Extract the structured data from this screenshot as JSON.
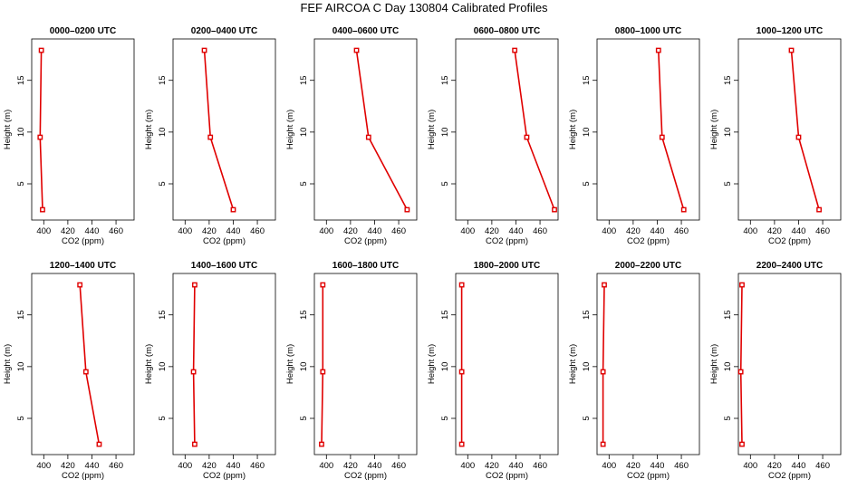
{
  "title": "FEF AIRCOA C  Day 130804  Calibrated Profiles",
  "series_color": "#e00000",
  "chart_data": [
    {
      "type": "line",
      "title": "0000–0200 UTC",
      "xlabel": "CO2 (ppm)",
      "ylabel": "Height (m)",
      "xlim": [
        390,
        475
      ],
      "ylim": [
        1.5,
        19
      ],
      "xticks": [
        400,
        420,
        440,
        460
      ],
      "yticks": [
        5,
        10,
        15
      ],
      "x": [
        398,
        397,
        399
      ],
      "y": [
        17.9,
        9.5,
        2.5
      ]
    },
    {
      "type": "line",
      "title": "0200–0400 UTC",
      "xlabel": "CO2 (ppm)",
      "ylabel": "Height (m)",
      "xlim": [
        390,
        475
      ],
      "ylim": [
        1.5,
        19
      ],
      "xticks": [
        400,
        420,
        440,
        460
      ],
      "yticks": [
        5,
        10,
        15
      ],
      "x": [
        416,
        421,
        440
      ],
      "y": [
        17.9,
        9.5,
        2.5
      ]
    },
    {
      "type": "line",
      "title": "0400–0600 UTC",
      "xlabel": "CO2 (ppm)",
      "ylabel": "Height (m)",
      "xlim": [
        390,
        475
      ],
      "ylim": [
        1.5,
        19
      ],
      "xticks": [
        400,
        420,
        440,
        460
      ],
      "yticks": [
        5,
        10,
        15
      ],
      "x": [
        425,
        435,
        467
      ],
      "y": [
        17.9,
        9.5,
        2.5
      ]
    },
    {
      "type": "line",
      "title": "0600–0800 UTC",
      "xlabel": "CO2 (ppm)",
      "ylabel": "Height (m)",
      "xlim": [
        390,
        475
      ],
      "ylim": [
        1.5,
        19
      ],
      "xticks": [
        400,
        420,
        440,
        460
      ],
      "yticks": [
        5,
        10,
        15
      ],
      "x": [
        439,
        449,
        472
      ],
      "y": [
        17.9,
        9.5,
        2.5
      ]
    },
    {
      "type": "line",
      "title": "0800–1000 UTC",
      "xlabel": "CO2 (ppm)",
      "ylabel": "Height (m)",
      "xlim": [
        390,
        475
      ],
      "ylim": [
        1.5,
        19
      ],
      "xticks": [
        400,
        420,
        440,
        460
      ],
      "yticks": [
        5,
        10,
        15
      ],
      "x": [
        441,
        444,
        462
      ],
      "y": [
        17.9,
        9.5,
        2.5
      ]
    },
    {
      "type": "line",
      "title": "1000–1200 UTC",
      "xlabel": "CO2 (ppm)",
      "ylabel": "Height (m)",
      "xlim": [
        390,
        475
      ],
      "ylim": [
        1.5,
        19
      ],
      "xticks": [
        400,
        420,
        440,
        460
      ],
      "yticks": [
        5,
        10,
        15
      ],
      "x": [
        434,
        440,
        457
      ],
      "y": [
        17.9,
        9.5,
        2.5
      ]
    },
    {
      "type": "line",
      "title": "1200–1400 UTC",
      "xlabel": "CO2 (ppm)",
      "ylabel": "Height (m)",
      "xlim": [
        390,
        475
      ],
      "ylim": [
        1.5,
        19
      ],
      "xticks": [
        400,
        420,
        440,
        460
      ],
      "yticks": [
        5,
        10,
        15
      ],
      "x": [
        430,
        435,
        446
      ],
      "y": [
        17.9,
        9.5,
        2.5
      ]
    },
    {
      "type": "line",
      "title": "1400–1600 UTC",
      "xlabel": "CO2 (ppm)",
      "ylabel": "Height (m)",
      "xlim": [
        390,
        475
      ],
      "ylim": [
        1.5,
        19
      ],
      "xticks": [
        400,
        420,
        440,
        460
      ],
      "yticks": [
        5,
        10,
        15
      ],
      "x": [
        408,
        407,
        408
      ],
      "y": [
        17.9,
        9.5,
        2.5
      ]
    },
    {
      "type": "line",
      "title": "1600–1800 UTC",
      "xlabel": "CO2 (ppm)",
      "ylabel": "Height (m)",
      "xlim": [
        390,
        475
      ],
      "ylim": [
        1.5,
        19
      ],
      "xticks": [
        400,
        420,
        440,
        460
      ],
      "yticks": [
        5,
        10,
        15
      ],
      "x": [
        397,
        397,
        396
      ],
      "y": [
        17.9,
        9.5,
        2.5
      ]
    },
    {
      "type": "line",
      "title": "1800–2000 UTC",
      "xlabel": "CO2 (ppm)",
      "ylabel": "Height (m)",
      "xlim": [
        390,
        475
      ],
      "ylim": [
        1.5,
        19
      ],
      "xticks": [
        400,
        420,
        440,
        460
      ],
      "yticks": [
        5,
        10,
        15
      ],
      "x": [
        395,
        395,
        395
      ],
      "y": [
        17.9,
        9.5,
        2.5
      ]
    },
    {
      "type": "line",
      "title": "2000–2200 UTC",
      "xlabel": "CO2 (ppm)",
      "ylabel": "Height (m)",
      "xlim": [
        390,
        475
      ],
      "ylim": [
        1.5,
        19
      ],
      "xticks": [
        400,
        420,
        440,
        460
      ],
      "yticks": [
        5,
        10,
        15
      ],
      "x": [
        396,
        395,
        395
      ],
      "y": [
        17.9,
        9.5,
        2.5
      ]
    },
    {
      "type": "line",
      "title": "2200–2400 UTC",
      "xlabel": "CO2 (ppm)",
      "ylabel": "Height (m)",
      "xlim": [
        390,
        475
      ],
      "ylim": [
        1.5,
        19
      ],
      "xticks": [
        400,
        420,
        440,
        460
      ],
      "yticks": [
        5,
        10,
        15
      ],
      "x": [
        393,
        392,
        393
      ],
      "y": [
        17.9,
        9.5,
        2.5
      ]
    }
  ]
}
